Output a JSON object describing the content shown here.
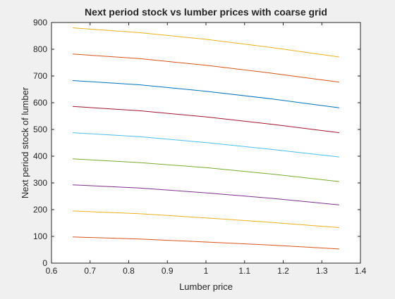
{
  "chart_data": {
    "type": "line",
    "title": "Next period stock vs lumber prices with coarse grid",
    "xlabel": "Lumber price",
    "ylabel": "Next period stock of lumber",
    "xlim": [
      0.6,
      1.4
    ],
    "ylim": [
      0,
      900
    ],
    "xticks": [
      "0.6",
      "0.7",
      "0.8",
      "0.9",
      "1",
      "1.1",
      "1.2",
      "1.3",
      "1.4"
    ],
    "yticks": [
      "0",
      "100",
      "200",
      "300",
      "400",
      "500",
      "600",
      "700",
      "800",
      "900"
    ],
    "grid": false,
    "legend": "none",
    "x": [
      0.655,
      0.8275,
      1.0,
      1.1725,
      1.345
    ],
    "series": [
      {
        "color": "#0072BD",
        "values": [
          0,
          0,
          0,
          0,
          0
        ]
      },
      {
        "color": "#D95319",
        "values": [
          98,
          90,
          79,
          67,
          53
        ]
      },
      {
        "color": "#EDB120",
        "values": [
          195,
          185,
          169,
          152,
          133
        ]
      },
      {
        "color": "#7E2F8E",
        "values": [
          293,
          281,
          263,
          242,
          218
        ]
      },
      {
        "color": "#77AC30",
        "values": [
          390,
          376,
          357,
          333,
          305
        ]
      },
      {
        "color": "#4DBEEE",
        "values": [
          488,
          473,
          451,
          425,
          397
        ]
      },
      {
        "color": "#A2142F",
        "values": [
          586,
          570,
          547,
          519,
          488
        ]
      },
      {
        "color": "#0072BD",
        "values": [
          683,
          667,
          643,
          614,
          581
        ]
      },
      {
        "color": "#D95319",
        "values": [
          782,
          765,
          740,
          710,
          677
        ]
      },
      {
        "color": "#EDB120",
        "values": [
          880,
          862,
          837,
          806,
          771
        ]
      }
    ]
  }
}
